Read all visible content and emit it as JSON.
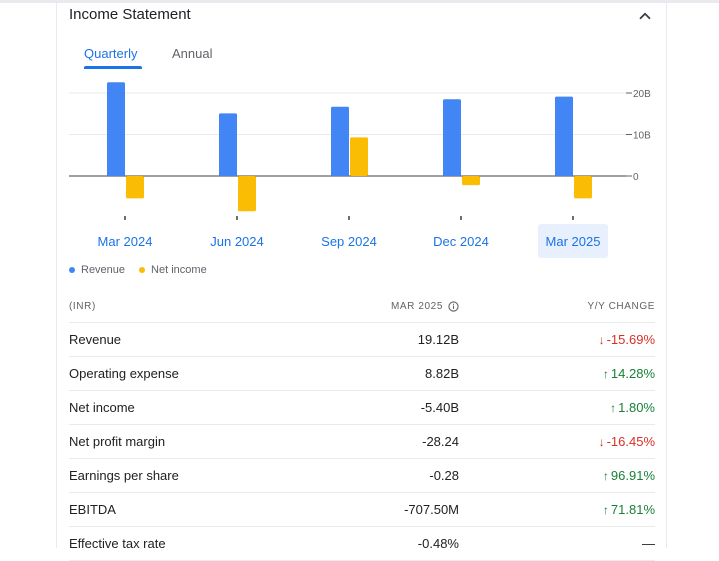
{
  "card": {
    "title": "Income Statement",
    "collapse_icon": "chevron-up-icon"
  },
  "tabs": [
    {
      "label": "Quarterly",
      "active": true
    },
    {
      "label": "Annual",
      "active": false
    }
  ],
  "chart_data": {
    "type": "bar",
    "categories": [
      "Mar 2024",
      "Jun 2024",
      "Sep 2024",
      "Dec 2024",
      "Mar 2025"
    ],
    "selected_category": "Mar 2025",
    "series": [
      {
        "name": "Revenue",
        "color": "#4285f4",
        "values": [
          22.6,
          15.1,
          16.7,
          18.5,
          19.12
        ]
      },
      {
        "name": "Net income",
        "color": "#fbbc04",
        "values": [
          -5.4,
          -8.5,
          9.3,
          -2.2,
          -5.4
        ]
      }
    ],
    "y_ticks": [
      "20B",
      "10B",
      "0"
    ],
    "ylim": [
      -9,
      25
    ],
    "legend_position": "bottom-left"
  },
  "legend": [
    {
      "label": "Revenue",
      "color": "#4285f4"
    },
    {
      "label": "Net income",
      "color": "#fbbc04"
    }
  ],
  "table": {
    "header": {
      "currency": "(INR)",
      "period": "MAR 2025",
      "change": "Y/Y CHANGE"
    },
    "rows": [
      {
        "label": "Revenue",
        "value": "19.12B",
        "change": "-15.69%",
        "dir": "down"
      },
      {
        "label": "Operating expense",
        "value": "8.82B",
        "change": "14.28%",
        "dir": "up"
      },
      {
        "label": "Net income",
        "value": "-5.40B",
        "change": "1.80%",
        "dir": "up"
      },
      {
        "label": "Net profit margin",
        "value": "-28.24",
        "change": "-16.45%",
        "dir": "down"
      },
      {
        "label": "Earnings per share",
        "value": "-0.28",
        "change": "96.91%",
        "dir": "up"
      },
      {
        "label": "EBITDA",
        "value": "-707.50M",
        "change": "71.81%",
        "dir": "up"
      },
      {
        "label": "Effective tax rate",
        "value": "-0.48%",
        "change": "—",
        "dir": "flat"
      }
    ]
  }
}
